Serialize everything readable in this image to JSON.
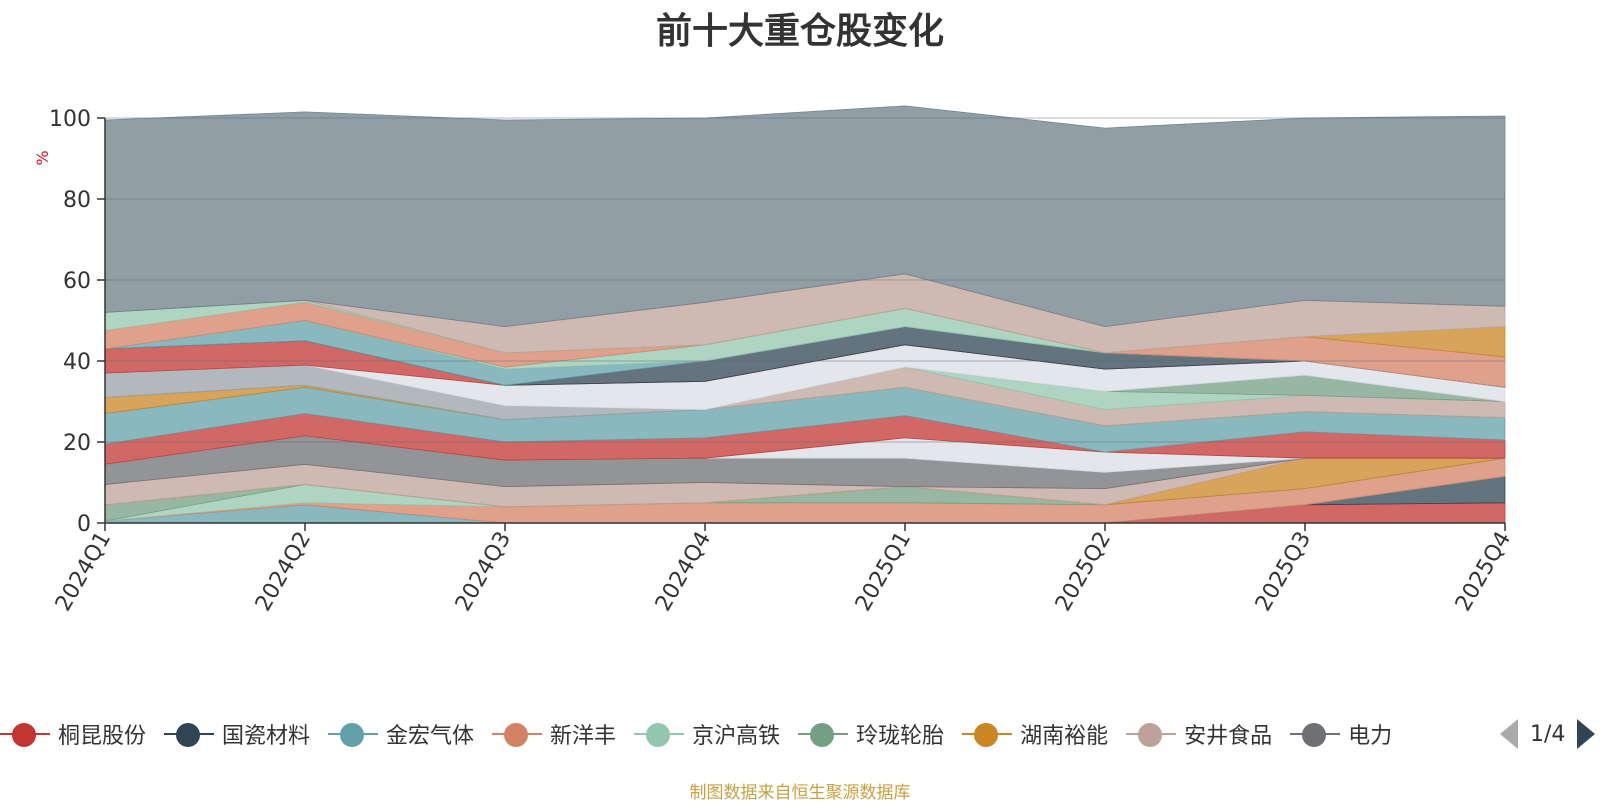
{
  "title": "前十大重仓股变化",
  "source_text": "制图数据来自恒生聚源数据库",
  "legend_page": "1/4",
  "colors": {
    "background": "#ffffff",
    "title": "#333333",
    "unit": "#e8101a",
    "source": "#c8a040"
  },
  "chart_data": {
    "type": "area",
    "title": "前十大重仓股变化",
    "ylabel": "%",
    "xlabel": "",
    "categories": [
      "2024Q1",
      "2024Q2",
      "2024Q3",
      "2024Q4",
      "2025Q1",
      "2025Q2",
      "2025Q3",
      "2025Q4"
    ],
    "ylim": [
      0,
      100
    ],
    "yticks": [
      0,
      20,
      40,
      60,
      80,
      100
    ],
    "stacked": true,
    "grid": true,
    "legend_position": "bottom",
    "series": [
      {
        "name": "桐昆股份",
        "color": "#c23531",
        "values": [
          0.0,
          0.0,
          0.0,
          0.0,
          0.0,
          0.0,
          4.5,
          5.0
        ]
      },
      {
        "name": "国瓷材料",
        "color": "#2f4554",
        "values": [
          0.0,
          0.0,
          0.0,
          0.0,
          0.0,
          0.0,
          0.0,
          6.5
        ]
      },
      {
        "name": "金宏气体",
        "color": "#61a0a8",
        "values": [
          0.5,
          4.5,
          0.0,
          0.0,
          0.0,
          0.0,
          0.0,
          0.0
        ]
      },
      {
        "name": "新洋丰",
        "color": "#d48265",
        "values": [
          0.0,
          0.5,
          4.0,
          5.0,
          5.0,
          4.5,
          4.0,
          4.5
        ]
      },
      {
        "name": "京沪高铁",
        "color": "#91c7ae",
        "values": [
          0.0,
          4.5,
          0.0,
          0.0,
          0.0,
          0.0,
          0.0,
          0.0
        ]
      },
      {
        "name": "玲珑轮胎",
        "color": "#749f83",
        "values": [
          4.0,
          0.0,
          0.0,
          0.0,
          4.0,
          0.0,
          0.0,
          0.0
        ]
      },
      {
        "name": "湖南裕能",
        "color": "#ca8622",
        "values": [
          0.0,
          0.0,
          0.0,
          0.0,
          0.0,
          0.0,
          7.5,
          0.0
        ]
      },
      {
        "name": "安井食品",
        "color": "#bda29a",
        "values": [
          5.0,
          5.0,
          5.0,
          5.0,
          0.0,
          4.0,
          0.0,
          0.0
        ]
      },
      {
        "name": "电力",
        "color": "#6e7074",
        "values": [
          5.0,
          7.0,
          6.5,
          6.0,
          7.0,
          4.0,
          0.0,
          0.0
        ]
      },
      {
        "name": "",
        "color": "#d9dde3",
        "values": [
          0.0,
          0.0,
          0.0,
          0.0,
          5.0,
          5.0,
          0.0,
          0.0
        ]
      },
      {
        "name": "",
        "color": "#c23531",
        "values": [
          5.0,
          5.5,
          4.5,
          5.0,
          5.5,
          0.0,
          6.5,
          4.5
        ]
      },
      {
        "name": "",
        "color": "#61a0a8",
        "values": [
          7.5,
          6.5,
          5.5,
          7.0,
          7.0,
          6.5,
          5.0,
          5.5
        ]
      },
      {
        "name": "",
        "color": "#ca8622",
        "values": [
          4.0,
          0.5,
          0.0,
          0.0,
          0.0,
          0.0,
          0.0,
          0.0
        ]
      },
      {
        "name": "",
        "color": "#bda29a",
        "values": [
          0.0,
          0.0,
          0.0,
          0.0,
          5.0,
          4.0,
          4.0,
          4.0
        ]
      },
      {
        "name": "",
        "color": "#91c7ae",
        "values": [
          0.0,
          0.0,
          0.0,
          0.0,
          0.0,
          4.5,
          0.0,
          0.0
        ]
      },
      {
        "name": "",
        "color": "#749f83",
        "values": [
          0.0,
          0.0,
          0.0,
          0.0,
          0.0,
          0.0,
          5.0,
          0.0
        ]
      },
      {
        "name": "",
        "color": "#9aa0a6",
        "values": [
          6.0,
          5.0,
          3.5,
          0.0,
          0.0,
          0.0,
          0.0,
          0.0
        ]
      },
      {
        "name": "",
        "color": "#d9dde3",
        "values": [
          0.0,
          0.0,
          5.0,
          7.0,
          5.5,
          5.5,
          3.5,
          3.5
        ]
      },
      {
        "name": "",
        "color": "#c23531",
        "values": [
          6.0,
          6.0,
          0.0,
          0.0,
          0.0,
          0.0,
          0.0,
          0.0
        ]
      },
      {
        "name": "",
        "color": "#2f4554",
        "values": [
          0.0,
          0.0,
          0.0,
          5.0,
          4.5,
          4.0,
          0.0,
          0.0
        ]
      },
      {
        "name": "",
        "color": "#61a0a8",
        "values": [
          0.0,
          5.0,
          4.0,
          0.0,
          0.0,
          0.0,
          0.0,
          0.0
        ]
      },
      {
        "name": "",
        "color": "#91c7ae",
        "values": [
          0.0,
          0.0,
          0.5,
          4.0,
          4.5,
          0.0,
          0.0,
          0.0
        ]
      },
      {
        "name": "",
        "color": "#d48265",
        "values": [
          4.5,
          4.5,
          3.5,
          0.0,
          0.0,
          0.0,
          6.0,
          7.5
        ]
      },
      {
        "name": "",
        "color": "#ca8622",
        "values": [
          0.0,
          0.0,
          0.0,
          0.0,
          0.0,
          0.0,
          0.0,
          7.5
        ]
      },
      {
        "name": "",
        "color": "#91c7ae",
        "values": [
          4.5,
          0.5,
          0.0,
          0.0,
          0.0,
          0.0,
          0.0,
          0.0
        ]
      },
      {
        "name": "",
        "color": "#bda29a",
        "values": [
          0.0,
          0.0,
          6.5,
          10.5,
          8.5,
          6.5,
          9.0,
          5.0
        ]
      },
      {
        "name": "",
        "color": "#6e7d88",
        "values": [
          47.5,
          46.5,
          51.0,
          45.5,
          41.5,
          49.0,
          45.0,
          47.0
        ]
      }
    ]
  }
}
